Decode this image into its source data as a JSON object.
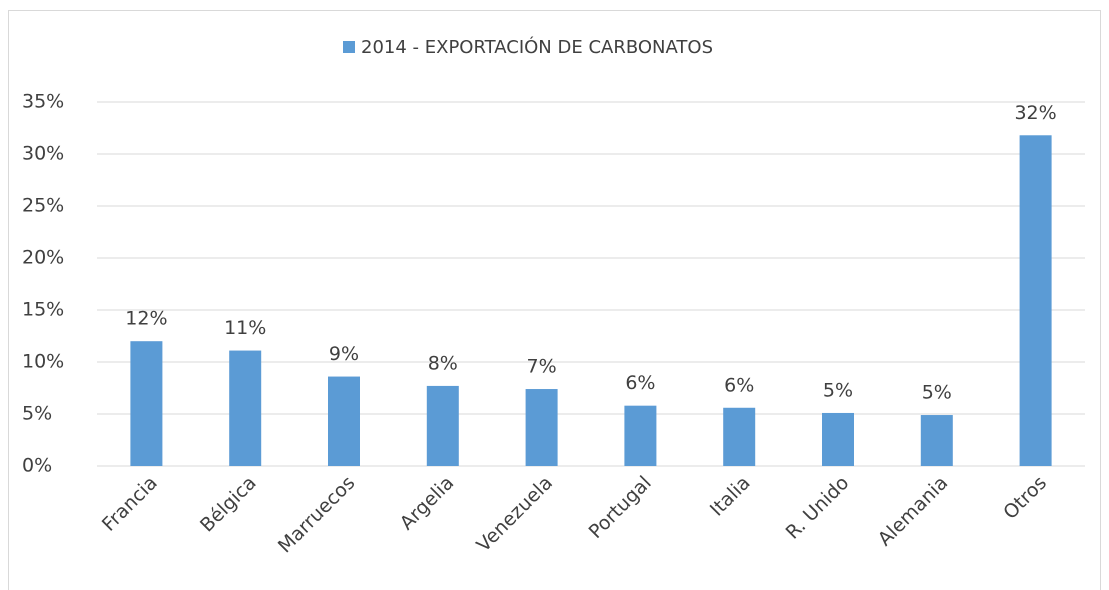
{
  "chart_data": {
    "type": "bar",
    "series": [
      {
        "name": "2014 - EXPORTACIÓN DE CARBONATOS",
        "color": "#5b9bd5",
        "values": [
          12.0,
          11.1,
          8.6,
          7.7,
          7.4,
          5.8,
          5.6,
          5.1,
          4.9,
          31.8
        ],
        "value_labels": [
          "12%",
          "11%",
          "9%",
          "8%",
          "7%",
          "6%",
          "6%",
          "5%",
          "5%",
          "32%"
        ]
      }
    ],
    "categories": [
      "Francia",
      "Bélgica",
      "Marruecos",
      "Argelia",
      "Venezuela",
      "Portugal",
      "Italia",
      "R. Unido",
      "Alemania",
      "Otros"
    ],
    "ylim": [
      0,
      35
    ],
    "yticks": [
      {
        "value": 0,
        "label": "0%"
      },
      {
        "value": 5,
        "label": "5%"
      },
      {
        "value": 10,
        "label": "10%"
      },
      {
        "value": 15,
        "label": "15%"
      },
      {
        "value": 20,
        "label": "20%"
      },
      {
        "value": 25,
        "label": "25%"
      },
      {
        "value": 30,
        "label": "30%"
      },
      {
        "value": 35,
        "label": "35%"
      }
    ],
    "grid": true
  }
}
